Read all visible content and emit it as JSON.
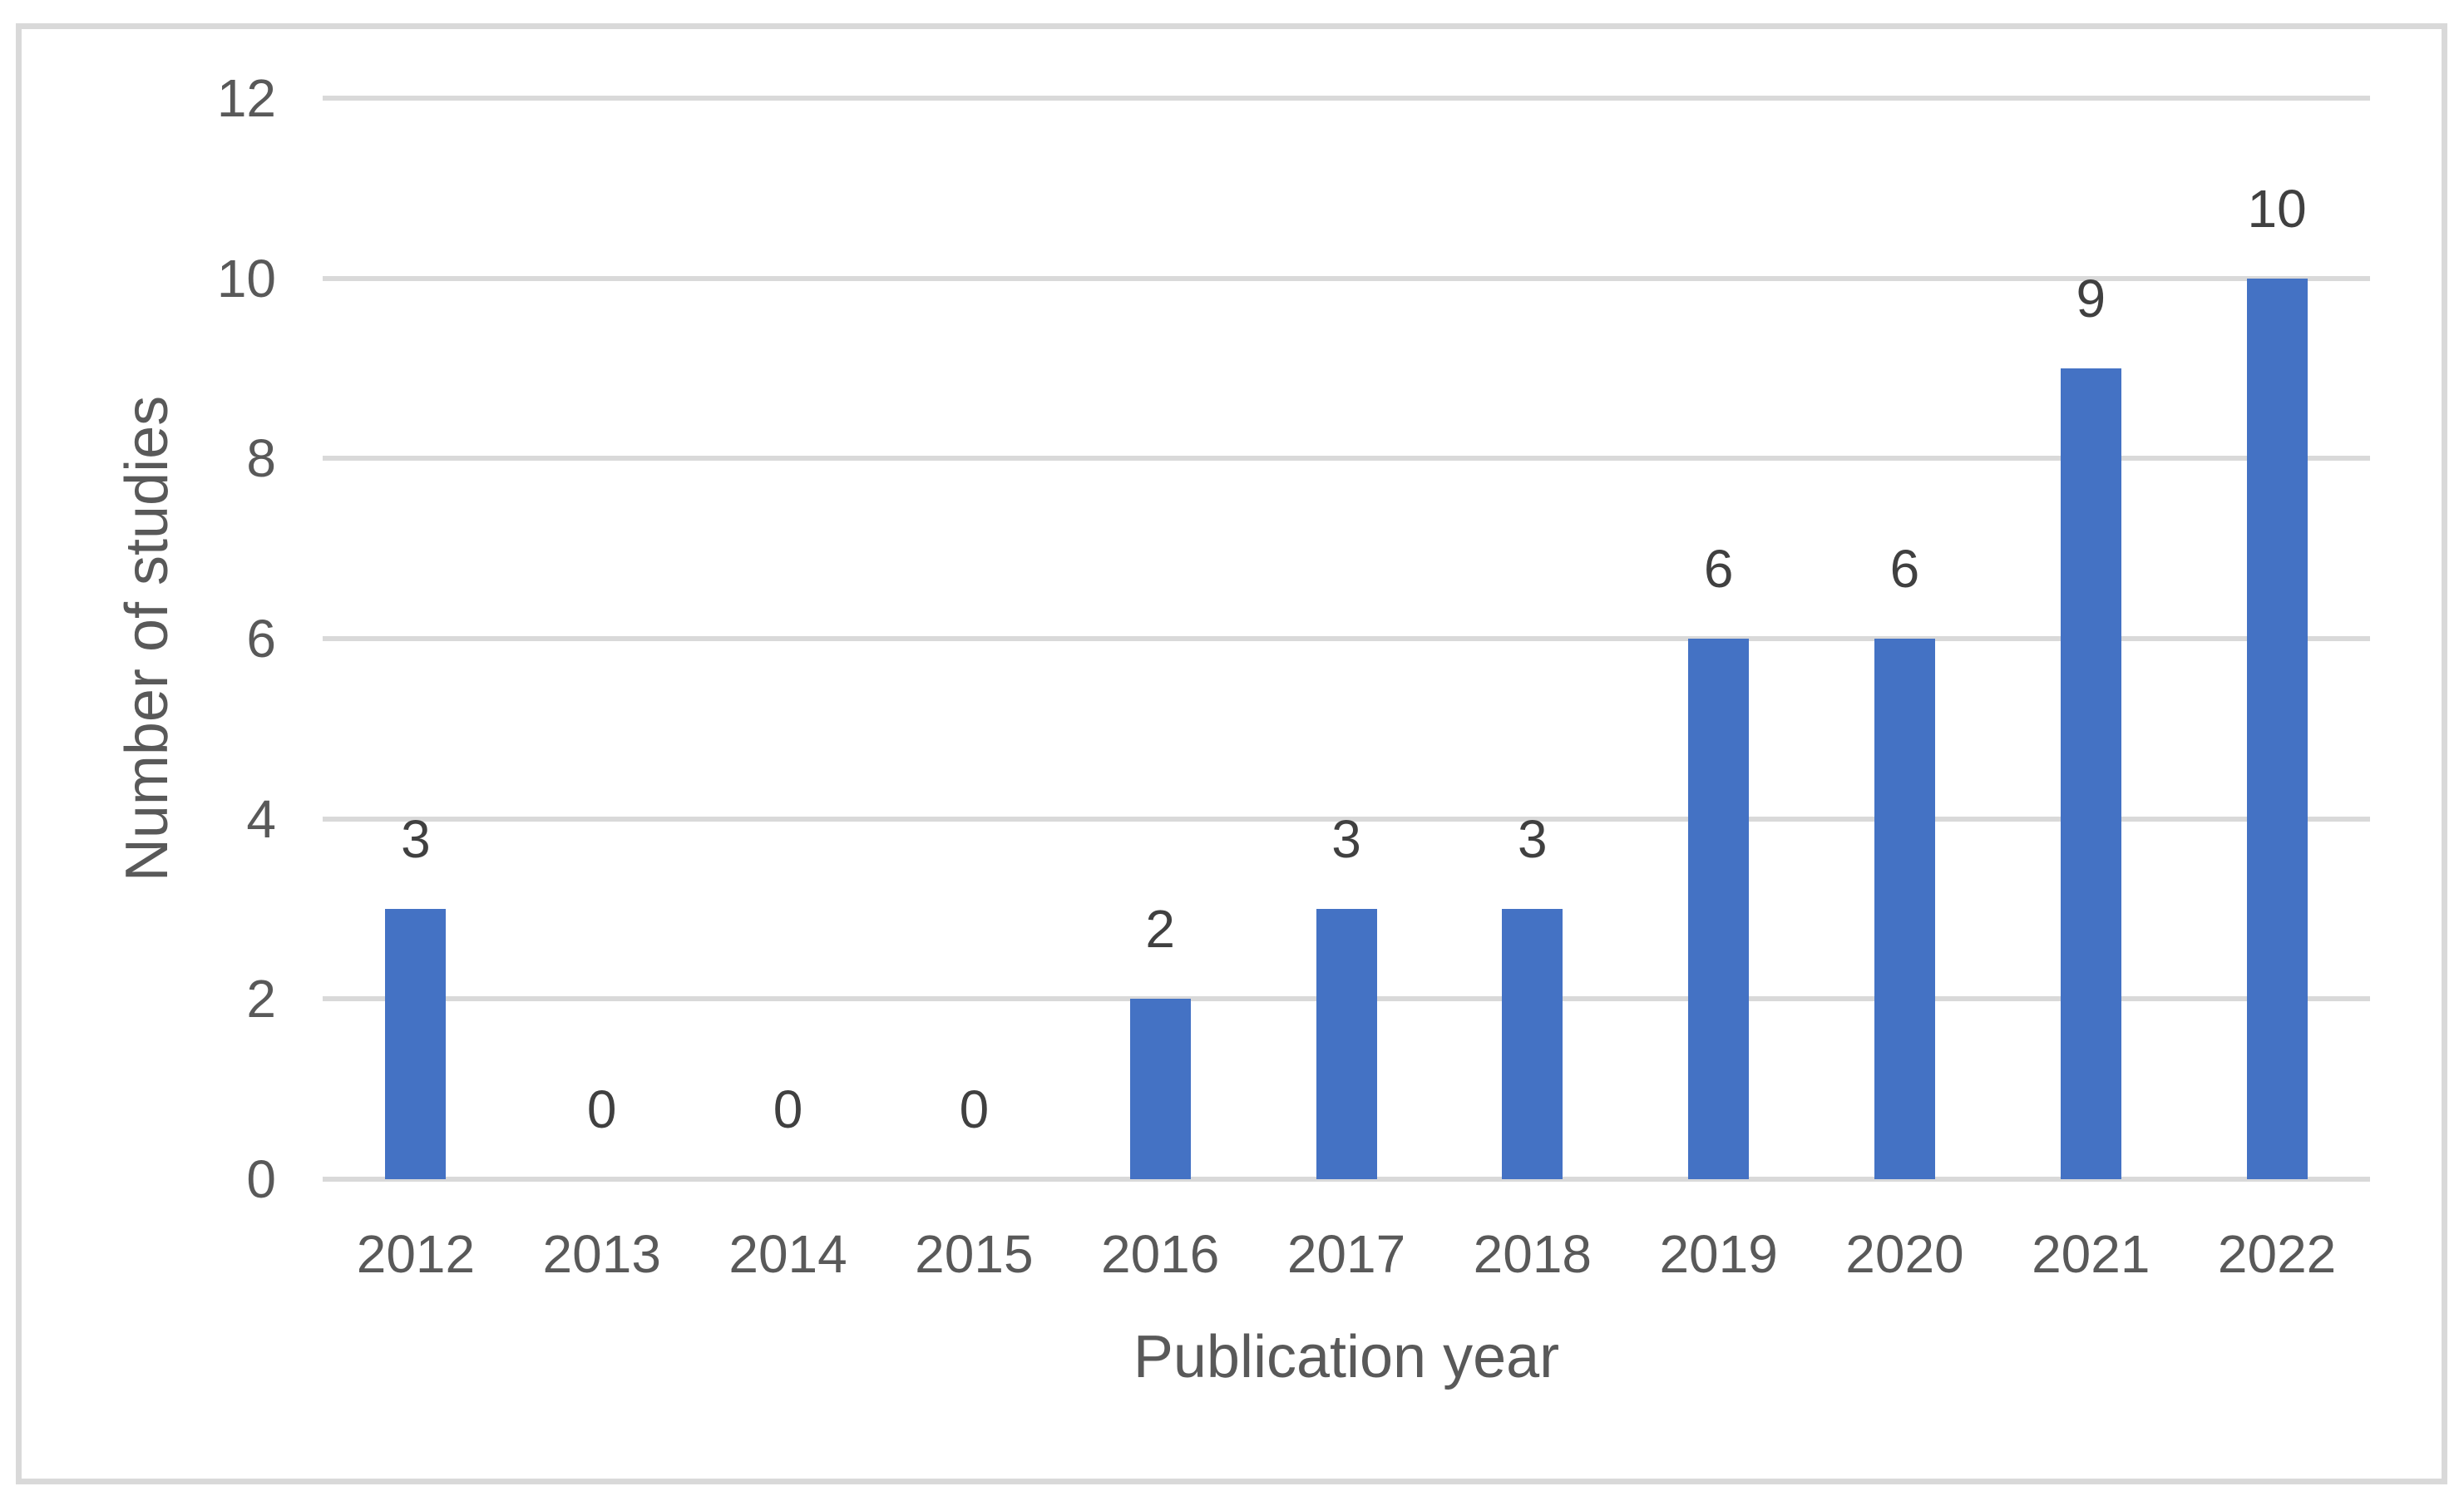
{
  "figure": {
    "background_color": "#ffffff",
    "border_color": "#d9d9d9"
  },
  "chart_data": {
    "type": "bar",
    "title": "",
    "xlabel": "Publication year",
    "ylabel": "Number of studies",
    "categories": [
      "2012",
      "2013",
      "2014",
      "2015",
      "2016",
      "2017",
      "2018",
      "2019",
      "2020",
      "2021",
      "2022"
    ],
    "values": [
      3,
      0,
      0,
      0,
      2,
      3,
      3,
      6,
      6,
      9,
      10
    ],
    "data_labels": [
      "3",
      "0",
      "0",
      "0",
      "2",
      "3",
      "3",
      "6",
      "6",
      "9",
      "10"
    ],
    "ylim": [
      0,
      12
    ],
    "y_ticks": [
      0,
      2,
      4,
      6,
      8,
      10,
      12
    ],
    "y_tick_labels": [
      "0",
      "2",
      "4",
      "6",
      "8",
      "10",
      "12"
    ],
    "grid": "horizontal",
    "legend": "none",
    "bar_color": "#4472c4",
    "gridline_color": "#d9d9d9",
    "tick_label_color": "#595959",
    "axis_title_color": "#595959",
    "data_label_color": "#404040"
  }
}
